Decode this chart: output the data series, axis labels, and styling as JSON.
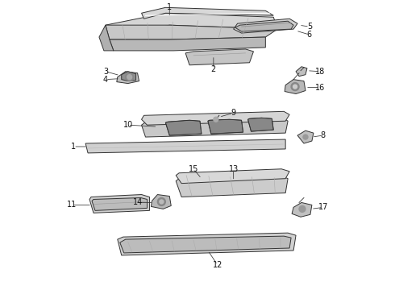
{
  "background_color": "#ffffff",
  "line_color": "#333333",
  "label_color": "#111111",
  "fig_width": 4.9,
  "fig_height": 3.6,
  "dpi": 100,
  "label_font_size": 7.0,
  "line_width": 0.7
}
